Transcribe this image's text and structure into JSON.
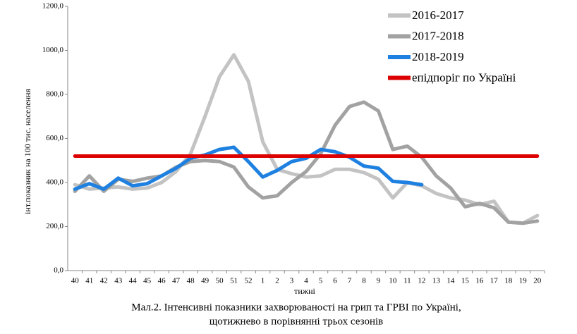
{
  "chart_data": {
    "type": "line",
    "caption": [
      "Мал.2. Інтенсивні показники захворюваності на грип та ГРВІ по Україні,",
      "щотижнево в порівнянні трьох сезонів"
    ],
    "x_label": "тижні",
    "y_label": "інт.показник на 100 тис. населення",
    "categories": [
      "40",
      "41",
      "42",
      "43",
      "44",
      "45",
      "46",
      "47",
      "48",
      "49",
      "50",
      "51",
      "52",
      "1",
      "2",
      "3",
      "4",
      "5",
      "6",
      "7",
      "8",
      "9",
      "10",
      "11",
      "12",
      "13",
      "14",
      "15",
      "16",
      "17",
      "18",
      "19",
      "20"
    ],
    "ylim": [
      0,
      1200
    ],
    "yticks": [
      {
        "value": 0,
        "label": "0,0"
      },
      {
        "value": 200,
        "label": "200,0"
      },
      {
        "value": 400,
        "label": "400,0"
      },
      {
        "value": 600,
        "label": "600,0"
      },
      {
        "value": 800,
        "label": "800,0"
      },
      {
        "value": 1000,
        "label": "1000,0"
      },
      {
        "value": 1200,
        "label": "1200,0"
      }
    ],
    "legend": "top-right",
    "series": [
      {
        "name": "2016-2017",
        "color": "#c3c3c3",
        "values": [
          390,
          370,
          375,
          380,
          370,
          375,
          400,
          450,
          530,
          700,
          880,
          980,
          860,
          585,
          460,
          440,
          425,
          430,
          460,
          460,
          445,
          415,
          330,
          400,
          385,
          350,
          330,
          320,
          300,
          315,
          220,
          215,
          250
        ]
      },
      {
        "name": "2017-2018",
        "color": "#a2a2a2",
        "values": [
          360,
          430,
          360,
          415,
          405,
          420,
          430,
          470,
          495,
          500,
          495,
          470,
          380,
          330,
          340,
          400,
          450,
          530,
          660,
          745,
          765,
          725,
          550,
          565,
          515,
          430,
          375,
          290,
          305,
          285,
          220,
          215,
          225
        ]
      },
      {
        "name": "2018-2019",
        "color": "#1e80e0",
        "values": [
          370,
          395,
          370,
          420,
          385,
          395,
          430,
          465,
          510,
          525,
          550,
          560,
          495,
          425,
          455,
          495,
          510,
          550,
          540,
          515,
          475,
          465,
          405,
          400,
          390,
          null,
          null,
          null,
          null,
          null,
          null,
          null,
          null
        ]
      },
      {
        "name": "епідпоріг по Україні",
        "color": "#dd0000",
        "values": [
          520,
          520,
          520,
          520,
          520,
          520,
          520,
          520,
          520,
          520,
          520,
          520,
          520,
          520,
          520,
          520,
          520,
          520,
          520,
          520,
          520,
          520,
          520,
          520,
          520,
          520,
          520,
          520,
          520,
          520,
          520,
          520,
          520
        ]
      }
    ]
  }
}
